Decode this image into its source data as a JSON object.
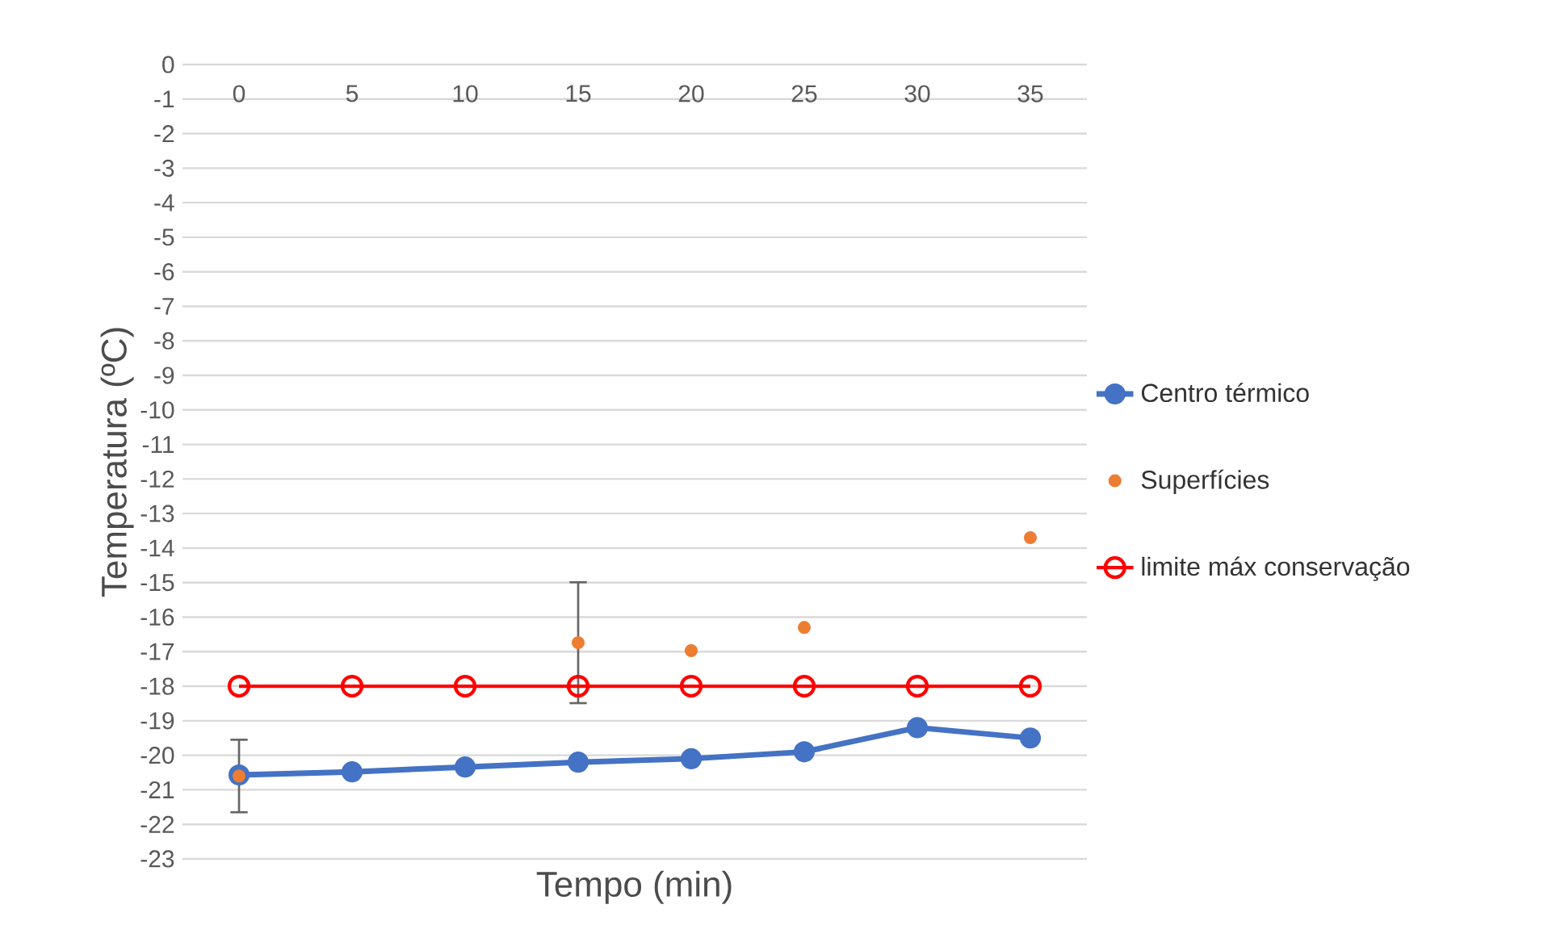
{
  "chart_data": {
    "type": "line",
    "xlabel": "Tempo (min)",
    "ylabel": "Temperatura (ºC)",
    "categories": [
      "0",
      "5",
      "10",
      "15",
      "20",
      "25",
      "30",
      "35"
    ],
    "series": [
      {
        "name": "Centro térmico",
        "color": "#4472c4",
        "marker": "circle",
        "values": [
          -20.57,
          -20.48,
          -20.34,
          -20.2,
          -20.1,
          -19.9,
          -19.2,
          -19.5
        ]
      },
      {
        "name": "Superfícies",
        "type": "scatter",
        "color": "#ed7d31",
        "marker": "circle",
        "values": [
          -20.6,
          null,
          null,
          -16.74,
          -16.97,
          -16.3,
          null,
          -13.7
        ],
        "errors": [
          1.05,
          null,
          null,
          1.75,
          null,
          null,
          null,
          null
        ]
      },
      {
        "name": "limite máx conservação",
        "color": "#ff0000",
        "marker": "circle",
        "values": [
          -18,
          -18,
          -18,
          -18,
          -18,
          -18,
          -18,
          -18
        ]
      }
    ],
    "ylim": [
      -23,
      0
    ],
    "yticks": [
      -23,
      -22,
      -21,
      -20,
      -19,
      -18,
      -17,
      -16,
      -15,
      -14,
      -13,
      -12,
      -11,
      -10,
      -9,
      -8,
      -7,
      -6,
      -5,
      -4,
      -3,
      -2,
      -1,
      0
    ],
    "grid": "y",
    "legend": "right"
  }
}
